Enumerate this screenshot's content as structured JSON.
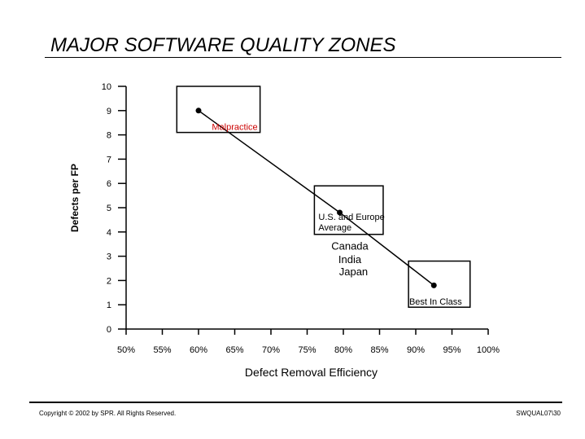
{
  "slide": {
    "title": "MAJOR SOFTWARE QUALITY ZONES",
    "copyright": "Copyright © 2002 by SPR.  All Rights Reserved.",
    "slide_id": "SWQUAL07\\30"
  },
  "chart_data": {
    "type": "line",
    "title": "",
    "xlabel": "Defect Removal Efficiency",
    "ylabel": "Defects per FP",
    "xlim": [
      50,
      100
    ],
    "ylim": [
      0,
      10
    ],
    "x_ticks": [
      50,
      55,
      60,
      65,
      70,
      75,
      80,
      85,
      90,
      95,
      100
    ],
    "x_tick_labels": [
      "50%",
      "55%",
      "60%",
      "65%",
      "70%",
      "75%",
      "80%",
      "85%",
      "90%",
      "95%",
      "100%"
    ],
    "y_ticks": [
      0,
      1,
      2,
      3,
      4,
      5,
      6,
      7,
      8,
      9,
      10
    ],
    "y_tick_labels": [
      "0",
      "1",
      "2",
      "3",
      "4",
      "5",
      "6",
      "7",
      "8",
      "9",
      "10"
    ],
    "grid": false,
    "series": [
      {
        "points": [
          {
            "x": 60,
            "y": 9.0
          },
          {
            "x": 79.5,
            "y": 4.8
          },
          {
            "x": 92.5,
            "y": 1.8
          }
        ]
      }
    ],
    "zones": [
      {
        "label": "Malpractice",
        "x0": 57,
        "x1": 68.5,
        "y0": 8.1,
        "y1": 10,
        "color": "#cc0000"
      },
      {
        "label": "U.S. and Europe Average",
        "x0": 76,
        "x1": 85.5,
        "y0": 3.9,
        "y1": 5.9,
        "color": "#000000"
      },
      {
        "label": "Best In Class",
        "x0": 89,
        "x1": 97.5,
        "y0": 0.9,
        "y1": 2.8,
        "color": "#000000"
      }
    ],
    "annotations": [
      {
        "text": "Canada",
        "x": 80,
        "y": 3.4
      },
      {
        "text": "India",
        "x": 80,
        "y": 2.85
      },
      {
        "text": "Japan",
        "x": 80.5,
        "y": 2.35
      }
    ]
  }
}
